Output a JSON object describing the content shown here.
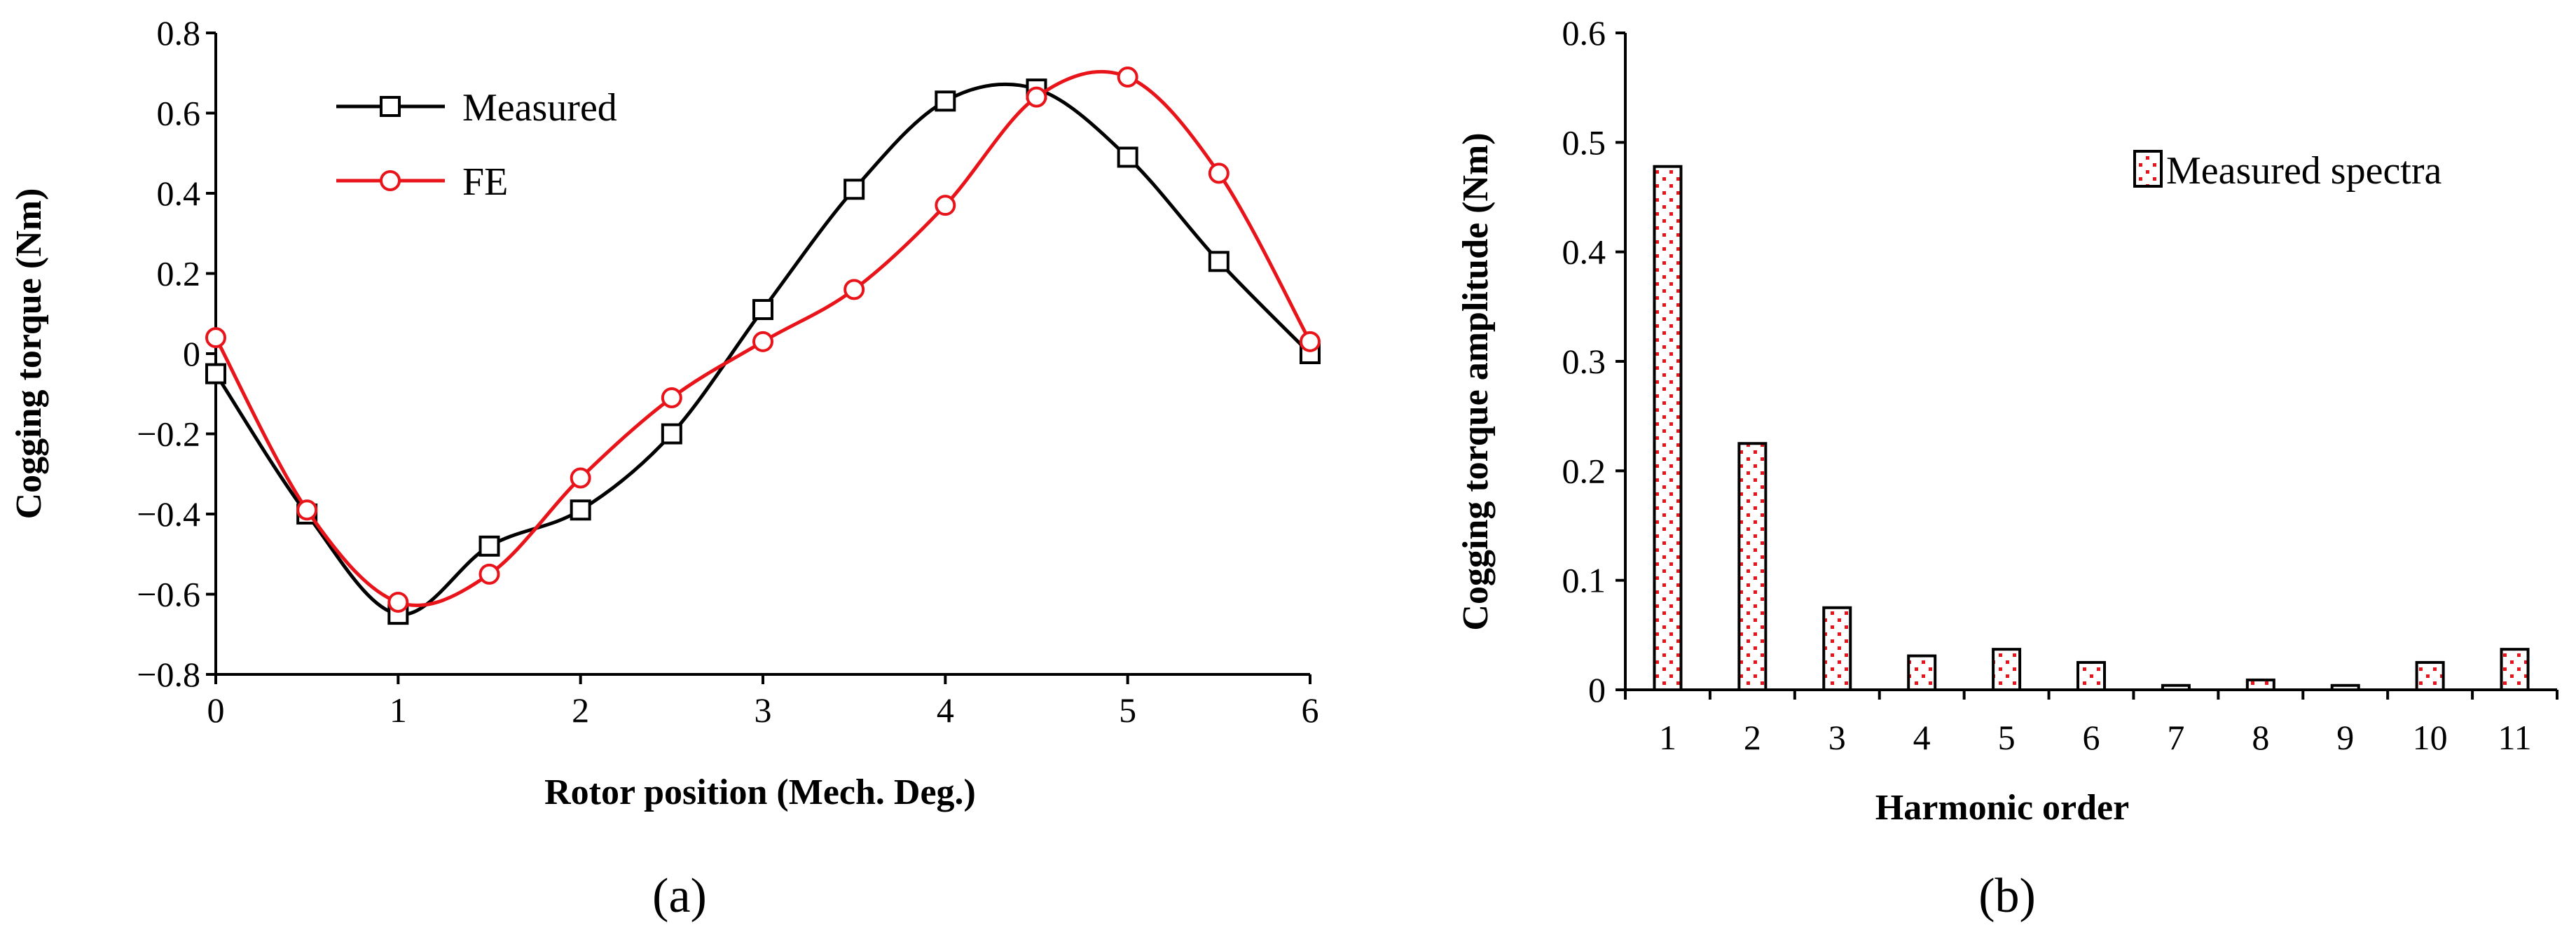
{
  "chart_data": [
    {
      "type": "line",
      "title": "",
      "xlabel": "Rotor position (Mech. Deg.)",
      "ylabel": "Cogging torque  (Nm)",
      "xlim": [
        0,
        6
      ],
      "ylim": [
        -0.8,
        0.8
      ],
      "xticks": [
        0,
        1,
        2,
        3,
        4,
        5,
        6
      ],
      "xtick_labels": [
        "0",
        "1",
        "2",
        "3",
        "4",
        "5",
        "6"
      ],
      "yticks": [
        -0.8,
        -0.6,
        -0.4,
        -0.2,
        0,
        0.2,
        0.4,
        0.6,
        0.8
      ],
      "ytick_labels": [
        "−0.8",
        "−0.6",
        "−0.4",
        "−0.2",
        "0",
        "0.2",
        "0.4",
        "0.6",
        "0.8"
      ],
      "legend_position": "top-left",
      "series": [
        {
          "name": "Measured",
          "color": "#000000",
          "marker": "square",
          "x": [
            0,
            0.5,
            1,
            1.5,
            2,
            2.5,
            3,
            3.5,
            4,
            4.5,
            5,
            5.5,
            6
          ],
          "y": [
            -0.05,
            -0.4,
            -0.65,
            -0.48,
            -0.39,
            -0.2,
            0.11,
            0.41,
            0.63,
            0.66,
            0.49,
            0.23,
            0.0
          ]
        },
        {
          "name": "FE",
          "color": "#e8141a",
          "marker": "circle",
          "x": [
            0,
            0.5,
            1,
            1.5,
            2,
            2.5,
            3,
            3.5,
            4,
            4.5,
            5,
            5.5,
            6
          ],
          "y": [
            0.04,
            -0.39,
            -0.62,
            -0.55,
            -0.31,
            -0.11,
            0.03,
            0.16,
            0.37,
            0.64,
            0.69,
            0.45,
            0.03
          ]
        }
      ],
      "caption": "(a)"
    },
    {
      "type": "bar",
      "title": "",
      "xlabel": "Harmonic order",
      "ylabel": "Cogging torque amplitude (Nm)",
      "ylim": [
        0,
        0.6
      ],
      "yticks": [
        0,
        0.1,
        0.2,
        0.3,
        0.4,
        0.5,
        0.6
      ],
      "ytick_labels": [
        "0",
        "0.1",
        "0.2",
        "0.3",
        "0.4",
        "0.5",
        "0.6"
      ],
      "categories": [
        "1",
        "2",
        "3",
        "4",
        "5",
        "6",
        "7",
        "8",
        "9",
        "10",
        "11"
      ],
      "legend_position": "top-right",
      "series": [
        {
          "name": "Measured spectra",
          "pattern_color": "#e8141a",
          "values": [
            0.478,
            0.225,
            0.075,
            0.031,
            0.037,
            0.025,
            0.004,
            0.009,
            0.004,
            0.025,
            0.037
          ]
        }
      ],
      "caption": "(b)"
    }
  ]
}
